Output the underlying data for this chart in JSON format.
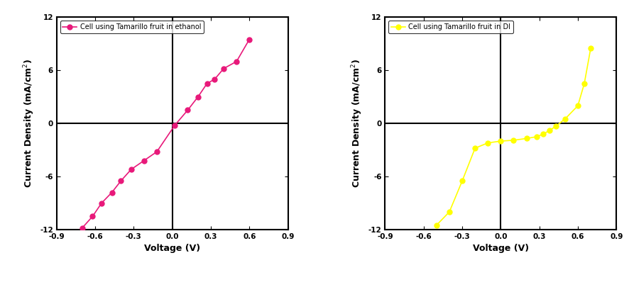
{
  "left": {
    "label": "Cell using Tamarillo fruit in ethanol",
    "color": "#E8197A",
    "x": [
      -0.7,
      -0.62,
      -0.55,
      -0.47,
      -0.4,
      -0.32,
      -0.22,
      -0.12,
      0.02,
      0.12,
      0.2,
      0.27,
      0.33,
      0.4,
      0.5,
      0.6
    ],
    "y": [
      -11.8,
      -10.5,
      -9.0,
      -7.8,
      -6.5,
      -5.2,
      -4.2,
      -3.2,
      -0.2,
      1.5,
      3.0,
      4.5,
      5.0,
      6.2,
      7.0,
      9.5
    ]
  },
  "right": {
    "label": "Cell using Tamarillo fruit in DI",
    "color": "#FFFF00",
    "x": [
      -0.5,
      -0.4,
      -0.3,
      -0.2,
      -0.1,
      0.0,
      0.1,
      0.2,
      0.28,
      0.33,
      0.38,
      0.43,
      0.5,
      0.6,
      0.65,
      0.7
    ],
    "y": [
      -11.5,
      -10.0,
      -6.5,
      -2.8,
      -2.2,
      -2.0,
      -1.9,
      -1.7,
      -1.5,
      -1.2,
      -0.8,
      -0.3,
      0.5,
      2.0,
      4.5,
      8.5
    ]
  },
  "xlim": [
    -0.9,
    0.9
  ],
  "ylim": [
    -12,
    12
  ],
  "xticks": [
    -0.9,
    -0.6,
    -0.3,
    0.0,
    0.3,
    0.6,
    0.9
  ],
  "xtick_labels": [
    "-0.9",
    "-0.6",
    "-0.3",
    "0.0",
    "0.3",
    "0.6",
    "0.9"
  ],
  "yticks": [
    -12,
    -6,
    0,
    6,
    12
  ],
  "ytick_labels": [
    "-12",
    "-6",
    "0",
    "6",
    "12"
  ],
  "xlabel": "Voltage (V)",
  "ylabel": "Current Density (mA/cm$^2$)",
  "bg_color": "#ffffff",
  "linewidth": 1.2,
  "markersize": 5,
  "spine_linewidth": 1.5
}
